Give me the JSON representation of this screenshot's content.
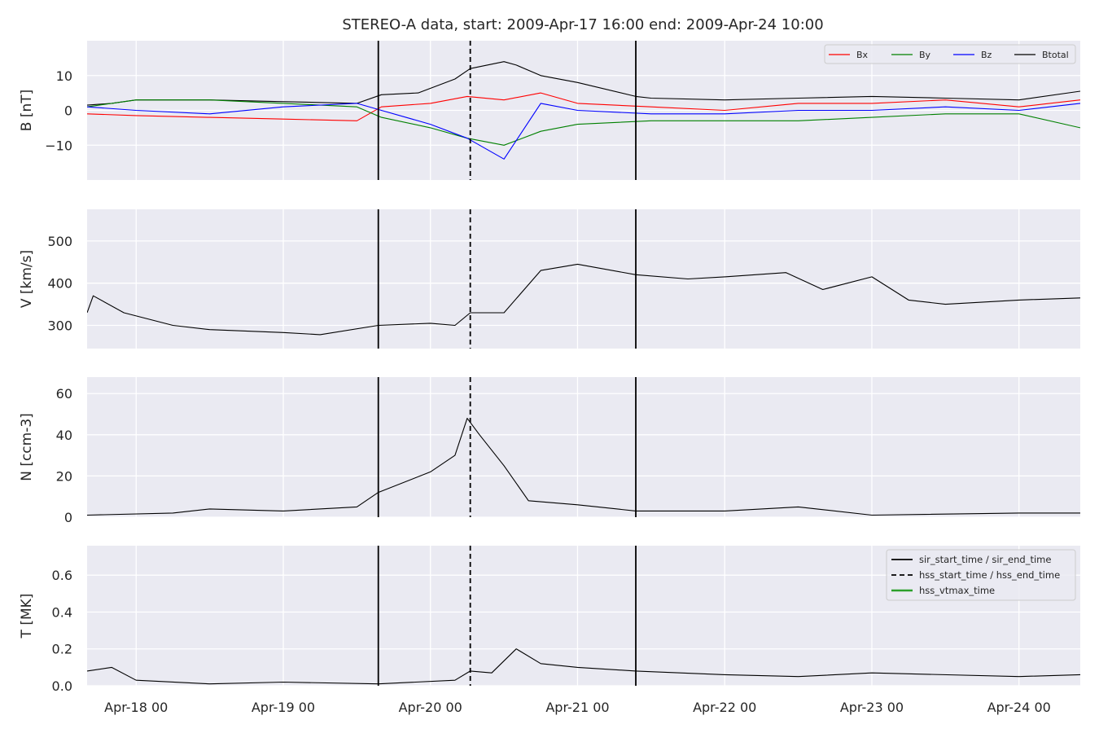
{
  "figure": {
    "title": "STEREO-A data, start: 2009-Apr-17 16:00  end: 2009-Apr-24 10:00"
  },
  "colors": {
    "panel_bg": "#eaeaf2",
    "grid": "#ffffff",
    "Bx": "#ff0000",
    "By": "#008000",
    "Bz": "#0000ff",
    "Btotal": "#000000",
    "event_line": "#000000",
    "hss_vtmax": "#2ca02c"
  },
  "chart_data": {
    "type": "line",
    "x_range": [
      "2009-04-17 16:00",
      "2009-04-24 10:00"
    ],
    "x_ticks": [
      "Apr-18 00",
      "Apr-19 00",
      "Apr-20 00",
      "Apr-21 00",
      "Apr-22 00",
      "Apr-23 00",
      "Apr-24 00"
    ],
    "x_tick_times": [
      "2009-04-18 00:00",
      "2009-04-19 00:00",
      "2009-04-20 00:00",
      "2009-04-21 00:00",
      "2009-04-22 00:00",
      "2009-04-23 00:00",
      "2009-04-24 00:00"
    ],
    "event_lines": [
      {
        "time": "2009-04-19 15:30",
        "style": "solid"
      },
      {
        "time": "2009-04-20 06:30",
        "style": "dashed"
      },
      {
        "time": "2009-04-21 09:30",
        "style": "solid"
      }
    ],
    "legend_events": [
      {
        "label": "sir_start_time / sir_end_time",
        "style": "solid",
        "color": "#000000"
      },
      {
        "label": "hss_start_time / hss_end_time",
        "style": "dashed",
        "color": "#000000"
      },
      {
        "label": "hss_vtmax_time",
        "style": "solid",
        "color": "#2ca02c"
      }
    ],
    "panels": [
      {
        "id": "B",
        "ylabel": "B [nT]",
        "ylim": [
          -20,
          20
        ],
        "yticks": [
          -10,
          0,
          10
        ],
        "ytick_labels": [
          "−10",
          "0",
          "10"
        ],
        "legend": [
          "Bx",
          "By",
          "Bz",
          "Btotal"
        ],
        "series": [
          {
            "name": "Btotal",
            "color": "#000000",
            "x": [
              "2009-04-17 16:00",
              "2009-04-17 20:00",
              "2009-04-18 00:00",
              "2009-04-18 12:00",
              "2009-04-19 00:00",
              "2009-04-19 12:00",
              "2009-04-19 16:00",
              "2009-04-19 22:00",
              "2009-04-20 04:00",
              "2009-04-20 06:30",
              "2009-04-20 12:00",
              "2009-04-20 14:00",
              "2009-04-20 18:00",
              "2009-04-21 00:00",
              "2009-04-21 09:30",
              "2009-04-21 12:00",
              "2009-04-22 00:00",
              "2009-04-22 12:00",
              "2009-04-23 00:00",
              "2009-04-23 12:00",
              "2009-04-24 00:00",
              "2009-04-24 10:00"
            ],
            "y": [
              1.5,
              2,
              3,
              3,
              2.5,
              2,
              4.5,
              5,
              9,
              12,
              14,
              13,
              10,
              8,
              4,
              3.5,
              3,
              3.5,
              4,
              3.5,
              3,
              5.5
            ]
          },
          {
            "name": "Bx",
            "color": "#ff0000",
            "x": [
              "2009-04-17 16:00",
              "2009-04-18 00:00",
              "2009-04-18 12:00",
              "2009-04-19 00:00",
              "2009-04-19 12:00",
              "2009-04-19 16:00",
              "2009-04-20 00:00",
              "2009-04-20 06:00",
              "2009-04-20 12:00",
              "2009-04-20 18:00",
              "2009-04-21 00:00",
              "2009-04-21 12:00",
              "2009-04-22 00:00",
              "2009-04-22 12:00",
              "2009-04-23 00:00",
              "2009-04-23 12:00",
              "2009-04-24 00:00",
              "2009-04-24 10:00"
            ],
            "y": [
              -1,
              -1.5,
              -2,
              -2.5,
              -3,
              1,
              2,
              4,
              3,
              5,
              2,
              1,
              0,
              2,
              2,
              3,
              1,
              3
            ]
          },
          {
            "name": "By",
            "color": "#008000",
            "x": [
              "2009-04-17 16:00",
              "2009-04-18 00:00",
              "2009-04-18 12:00",
              "2009-04-19 00:00",
              "2009-04-19 12:00",
              "2009-04-19 16:00",
              "2009-04-20 00:00",
              "2009-04-20 06:00",
              "2009-04-20 12:00",
              "2009-04-20 18:00",
              "2009-04-21 00:00",
              "2009-04-21 12:00",
              "2009-04-22 00:00",
              "2009-04-22 12:00",
              "2009-04-23 00:00",
              "2009-04-23 12:00",
              "2009-04-24 00:00",
              "2009-04-24 10:00"
            ],
            "y": [
              1,
              3,
              3,
              2,
              1,
              -2,
              -5,
              -8,
              -10,
              -6,
              -4,
              -3,
              -3,
              -3,
              -2,
              -1,
              -1,
              -5
            ]
          },
          {
            "name": "Bz",
            "color": "#0000ff",
            "x": [
              "2009-04-17 16:00",
              "2009-04-18 00:00",
              "2009-04-18 12:00",
              "2009-04-19 00:00",
              "2009-04-19 12:00",
              "2009-04-19 16:00",
              "2009-04-20 00:00",
              "2009-04-20 06:00",
              "2009-04-20 12:00",
              "2009-04-20 18:00",
              "2009-04-21 00:00",
              "2009-04-21 12:00",
              "2009-04-22 00:00",
              "2009-04-22 12:00",
              "2009-04-23 00:00",
              "2009-04-23 12:00",
              "2009-04-24 00:00",
              "2009-04-24 10:00"
            ],
            "y": [
              1,
              0,
              -1,
              1,
              2,
              0,
              -4,
              -8,
              -14,
              2,
              0,
              -1,
              -1,
              0,
              0,
              1,
              0,
              2
            ]
          }
        ]
      },
      {
        "id": "V",
        "ylabel": "V [km/s]",
        "ylim": [
          245,
          575
        ],
        "yticks": [
          300,
          400,
          500
        ],
        "ytick_labels": [
          "300",
          "400",
          "500"
        ],
        "series": [
          {
            "name": "V",
            "color": "#000000",
            "x": [
              "2009-04-17 16:00",
              "2009-04-17 17:00",
              "2009-04-17 22:00",
              "2009-04-18 06:00",
              "2009-04-18 12:00",
              "2009-04-19 00:00",
              "2009-04-19 06:00",
              "2009-04-19 15:30",
              "2009-04-20 00:00",
              "2009-04-20 04:00",
              "2009-04-20 06:30",
              "2009-04-20 12:00",
              "2009-04-20 18:00",
              "2009-04-21 00:00",
              "2009-04-21 09:30",
              "2009-04-21 18:00",
              "2009-04-22 00:00",
              "2009-04-22 10:00",
              "2009-04-22 16:00",
              "2009-04-23 00:00",
              "2009-04-23 06:00",
              "2009-04-23 12:00",
              "2009-04-24 00:00",
              "2009-04-24 10:00"
            ],
            "y": [
              330,
              370,
              330,
              300,
              290,
              283,
              278,
              300,
              305,
              300,
              330,
              330,
              430,
              445,
              420,
              410,
              415,
              425,
              385,
              415,
              360,
              350,
              360,
              365
            ]
          }
        ]
      },
      {
        "id": "N",
        "ylabel": "N [ccm-3]",
        "ylim": [
          0,
          68
        ],
        "yticks": [
          0,
          20,
          40,
          60
        ],
        "ytick_labels": [
          "0",
          "20",
          "40",
          "60"
        ],
        "series": [
          {
            "name": "N",
            "color": "#000000",
            "x": [
              "2009-04-17 16:00",
              "2009-04-18 06:00",
              "2009-04-18 12:00",
              "2009-04-19 00:00",
              "2009-04-19 12:00",
              "2009-04-19 15:30",
              "2009-04-20 00:00",
              "2009-04-20 04:00",
              "2009-04-20 06:00",
              "2009-04-20 08:00",
              "2009-04-20 12:00",
              "2009-04-20 16:00",
              "2009-04-21 00:00",
              "2009-04-21 09:30",
              "2009-04-22 00:00",
              "2009-04-22 12:00",
              "2009-04-23 00:00",
              "2009-04-24 00:00",
              "2009-04-24 10:00"
            ],
            "y": [
              1,
              2,
              4,
              3,
              5,
              12,
              22,
              30,
              48,
              40,
              25,
              8,
              6,
              3,
              3,
              5,
              1,
              2,
              2
            ]
          }
        ]
      },
      {
        "id": "T",
        "ylabel": "T [MK]",
        "ylim": [
          0,
          0.76
        ],
        "yticks": [
          0,
          0.2,
          0.4,
          0.6
        ],
        "ytick_labels": [
          "0.0",
          "0.2",
          "0.4",
          "0.6"
        ],
        "series": [
          {
            "name": "T",
            "color": "#000000",
            "x": [
              "2009-04-17 16:00",
              "2009-04-17 20:00",
              "2009-04-18 00:00",
              "2009-04-18 12:00",
              "2009-04-19 00:00",
              "2009-04-19 15:30",
              "2009-04-20 04:00",
              "2009-04-20 06:30",
              "2009-04-20 10:00",
              "2009-04-20 14:00",
              "2009-04-20 18:00",
              "2009-04-21 00:00",
              "2009-04-21 09:30",
              "2009-04-22 00:00",
              "2009-04-22 12:00",
              "2009-04-23 00:00",
              "2009-04-24 00:00",
              "2009-04-24 10:00"
            ],
            "y": [
              0.08,
              0.1,
              0.03,
              0.01,
              0.02,
              0.01,
              0.03,
              0.08,
              0.07,
              0.2,
              0.12,
              0.1,
              0.08,
              0.06,
              0.05,
              0.07,
              0.05,
              0.06
            ]
          }
        ]
      }
    ]
  }
}
